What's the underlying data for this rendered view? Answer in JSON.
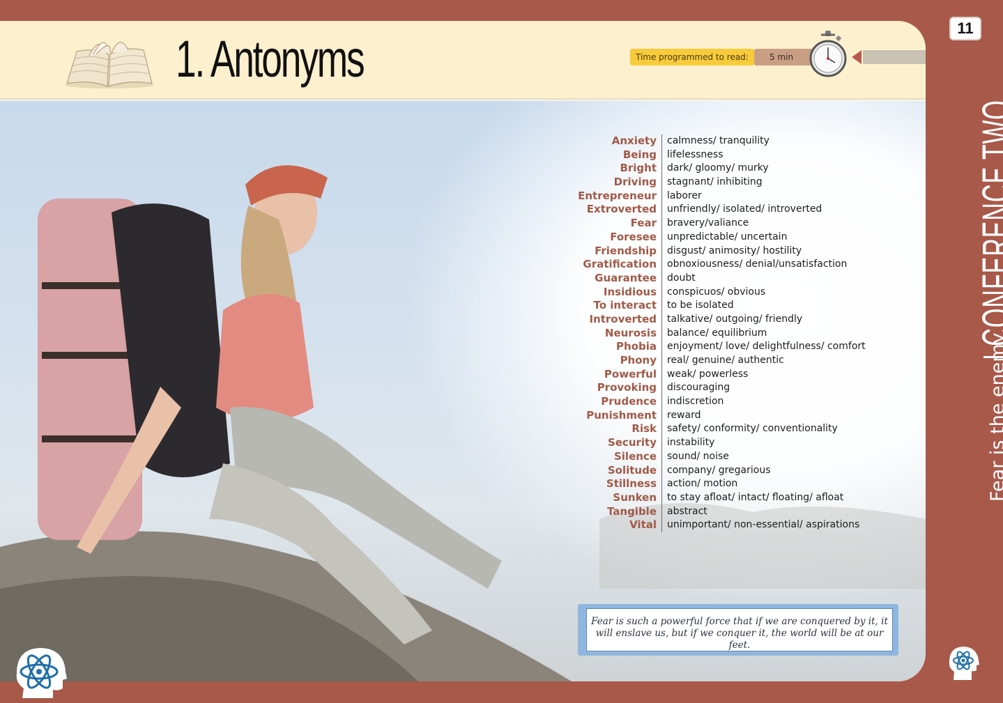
{
  "header": {
    "title": "1. Antonyms",
    "time_label": "Time programmed to read:",
    "time_value": "5 min"
  },
  "page_number": "11",
  "side": {
    "subtitle": "Fear is the enemy",
    "section": "CONFERENCE TWO"
  },
  "antonyms": [
    {
      "word": "Anxiety",
      "antonym": "calmness/ tranquility"
    },
    {
      "word": "Being",
      "antonym": "lifelessness"
    },
    {
      "word": "Bright",
      "antonym": "dark/ gloomy/ murky"
    },
    {
      "word": "Driving",
      "antonym": "stagnant/ inhibiting"
    },
    {
      "word": "Entrepreneur",
      "antonym": "laborer"
    },
    {
      "word": "Extroverted",
      "antonym": "unfriendly/ isolated/ introverted"
    },
    {
      "word": "Fear",
      "antonym": "bravery/valiance"
    },
    {
      "word": "Foresee",
      "antonym": "unpredictable/ uncertain"
    },
    {
      "word": "Friendship",
      "antonym": "disgust/ animosity/ hostility"
    },
    {
      "word": "Gratification",
      "antonym": "obnoxiousness/ denial/unsatisfaction"
    },
    {
      "word": "Guarantee",
      "antonym": "doubt"
    },
    {
      "word": "Insidious",
      "antonym": "conspicuos/ obvious"
    },
    {
      "word": "To interact",
      "antonym": "to be isolated"
    },
    {
      "word": "Introverted",
      "antonym": "talkative/ outgoing/ friendly"
    },
    {
      "word": "Neurosis",
      "antonym": "balance/ equilibrium"
    },
    {
      "word": "Phobia",
      "antonym": "enjoyment/ love/ delightfulness/ comfort"
    },
    {
      "word": "Phony",
      "antonym": "real/ genuine/ authentic"
    },
    {
      "word": "Powerful",
      "antonym": "weak/ powerless"
    },
    {
      "word": "Provoking",
      "antonym": "discouraging"
    },
    {
      "word": "Prudence",
      "antonym": "indiscretion"
    },
    {
      "word": "Punishment",
      "antonym": "reward"
    },
    {
      "word": "Risk",
      "antonym": "safety/ conformity/ conventionality"
    },
    {
      "word": "Security",
      "antonym": "instability"
    },
    {
      "word": "Silence",
      "antonym": "sound/ noise"
    },
    {
      "word": "Solitude",
      "antonym": "company/ gregarious"
    },
    {
      "word": "Stillness",
      "antonym": "action/ motion"
    },
    {
      "word": "Sunken",
      "antonym": "to stay afloat/ intact/ floating/ afloat"
    },
    {
      "word": "Tangible",
      "antonym": "abstract"
    },
    {
      "word": "Vital",
      "antonym": "unimportant/ non-essential/ aspirations"
    }
  ],
  "quote": {
    "line1": "Fear is such a powerful force that if we are conquered by it, it",
    "line2": "will enslave us, but if we conquer it, the world will be at our feet."
  },
  "colors": {
    "border": "#a8594a",
    "header_bg": "#fcf0cf",
    "word_color": "#a15a48",
    "time_label_bg": "#f7cb3a",
    "quote_border": "#8fb6de"
  },
  "icons": {
    "book": "open-book-icon",
    "stopwatch": "stopwatch-icon",
    "logo": "atom-head-logo"
  }
}
